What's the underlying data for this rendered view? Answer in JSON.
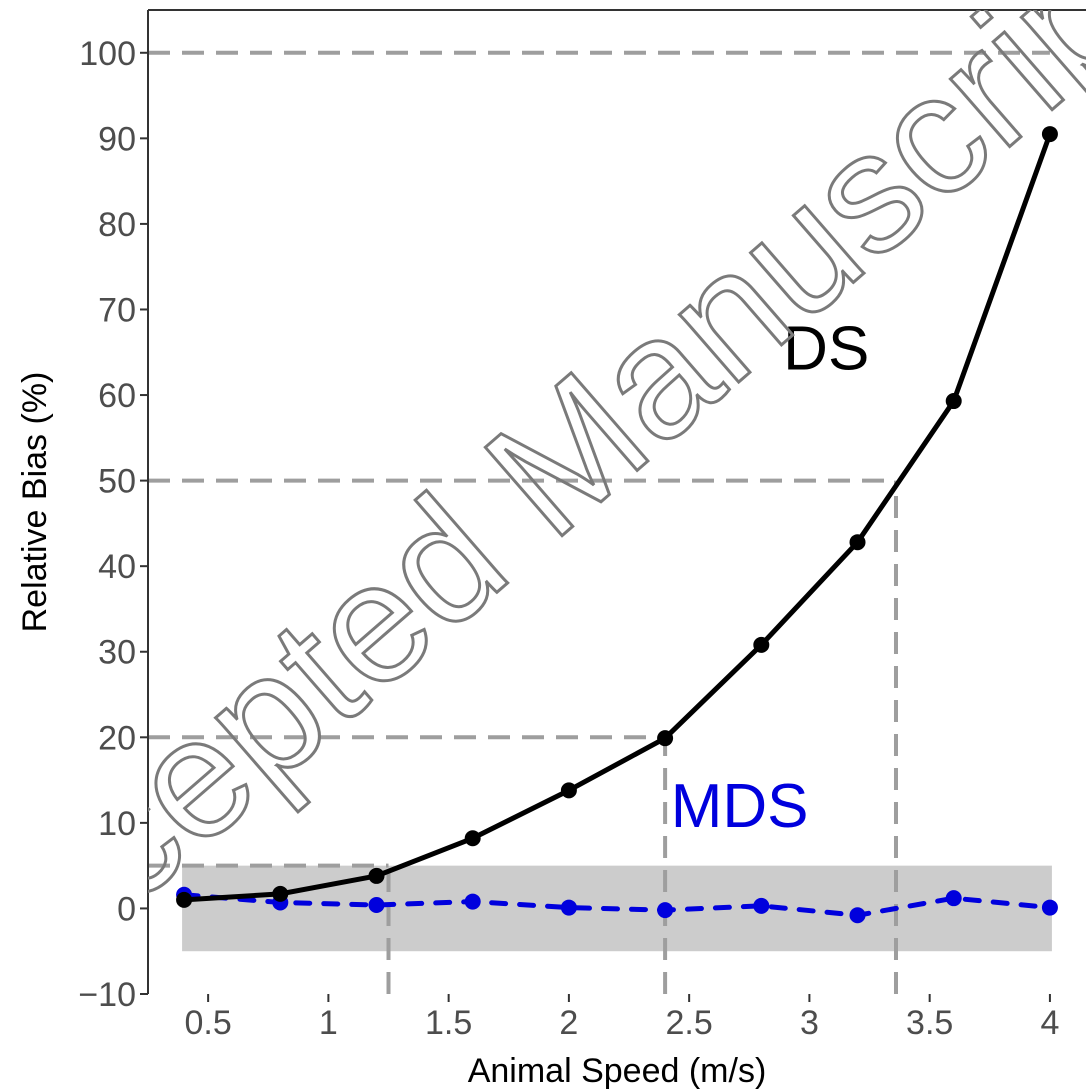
{
  "chart_data": {
    "type": "line",
    "xlabel": "Animal Speed (m/s)",
    "ylabel": "Relative Bias (%)",
    "xlim": [
      0.25,
      4.15
    ],
    "ylim": [
      -10,
      105
    ],
    "x_ticks": [
      0.5,
      1,
      1.5,
      2,
      2.5,
      3,
      3.5,
      4
    ],
    "x_tick_labels": [
      "0.5",
      "1",
      "1.5",
      "2",
      "2.5",
      "3",
      "3.5",
      "4"
    ],
    "y_ticks": [
      -10,
      0,
      10,
      20,
      30,
      40,
      50,
      60,
      70,
      80,
      90,
      100
    ],
    "y_tick_labels": [
      "−10",
      "0",
      "10",
      "20",
      "30",
      "40",
      "50",
      "60",
      "70",
      "80",
      "90",
      "100"
    ],
    "grid": false,
    "series": [
      {
        "name": "DS",
        "color": "#000000",
        "style": "solid",
        "x": [
          0.4,
          0.8,
          1.2,
          1.6,
          2.0,
          2.4,
          2.8,
          3.2,
          3.6,
          4.0
        ],
        "y": [
          1.0,
          1.7,
          3.8,
          8.2,
          13.8,
          19.9,
          30.8,
          42.8,
          59.3,
          90.5
        ]
      },
      {
        "name": "MDS",
        "color": "#0000dd",
        "style": "dashed",
        "x": [
          0.4,
          0.8,
          1.2,
          1.6,
          2.0,
          2.4,
          2.8,
          3.2,
          3.6,
          4.0
        ],
        "y": [
          1.6,
          0.7,
          0.4,
          0.8,
          0.1,
          -0.2,
          0.3,
          -0.8,
          1.2,
          0.1
        ]
      }
    ],
    "shaded_band": {
      "xmin": 0.4,
      "xmax": 4.0,
      "ymin": -5,
      "ymax": 5,
      "color": "#cccccc"
    },
    "reference_lines": [
      {
        "orientation": "horizontal",
        "y": 100,
        "x_from": 0.25,
        "x_to": 4.0
      },
      {
        "orientation": "horizontal",
        "y": 50,
        "x_from": 0.25,
        "x_to": 3.36
      },
      {
        "orientation": "horizontal",
        "y": 20,
        "x_from": 0.25,
        "x_to": 2.4
      },
      {
        "orientation": "horizontal",
        "y": 5,
        "x_from": 0.25,
        "x_to": 1.25
      },
      {
        "orientation": "vertical",
        "x": 3.36,
        "y_from": -10,
        "y_to": 50
      },
      {
        "orientation": "vertical",
        "x": 2.4,
        "y_from": -10,
        "y_to": 20
      },
      {
        "orientation": "vertical",
        "x": 1.25,
        "y_from": -10,
        "y_to": 5
      }
    ],
    "reference_line_color": "#9e9e9e",
    "annotations": [
      {
        "text": "DS",
        "x": 3.07,
        "y": 63,
        "color": "#000000"
      },
      {
        "text": "MDS",
        "x": 2.71,
        "y": 9.5,
        "color": "#0000dd"
      }
    ]
  },
  "watermark": {
    "text": "Accepted Manuscript",
    "color": "#7a7a7a"
  }
}
